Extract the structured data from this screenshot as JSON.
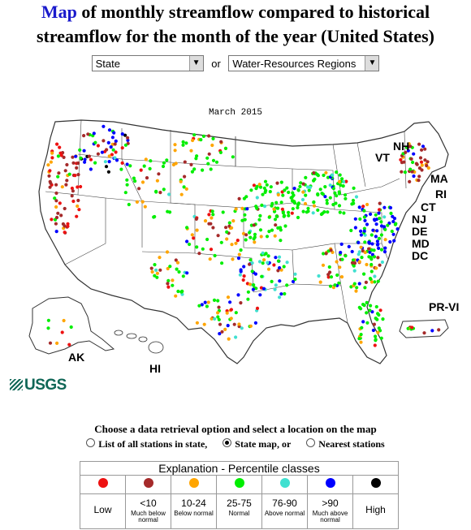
{
  "page": {
    "title_link": "Map",
    "title_rest_line1": " of monthly streamflow compared to historical",
    "title_line2": "streamflow for the month of the year (United States)"
  },
  "selectors": {
    "state_value": "State",
    "or_text": "or",
    "region_value": "Water-Resources Regions"
  },
  "map": {
    "caption": "March 2015",
    "state_labels": [
      "NH",
      "VT",
      "MA",
      "RI",
      "CT",
      "NJ",
      "DE",
      "MD",
      "DC",
      "PR-VI",
      "AK",
      "HI"
    ]
  },
  "logo": {
    "text": "USGS"
  },
  "retrieval": {
    "heading": "Choose a data retrieval option and select a location on the map",
    "options": [
      "List of all stations in state,",
      "State map, or",
      "Nearest stations"
    ],
    "selected_index": 1
  },
  "legend": {
    "title": "Explanation - Percentile classes",
    "classes": [
      {
        "color": "#ee1111",
        "label": "Low",
        "sub": ""
      },
      {
        "color": "#a52a2a",
        "label": "<10",
        "sub": "Much below normal"
      },
      {
        "color": "#ffa500",
        "label": "10-24",
        "sub": "Below normal"
      },
      {
        "color": "#00ee00",
        "label": "25-75",
        "sub": "Normal"
      },
      {
        "color": "#40e0d0",
        "label": "76-90",
        "sub": "Above normal"
      },
      {
        "color": "#0000ff",
        "label": ">90",
        "sub": "Much above normal"
      },
      {
        "color": "#000000",
        "label": "High",
        "sub": ""
      }
    ]
  },
  "colors": {
    "map_outline": "#333333",
    "map_fill": "#ffffff",
    "title_link": "#1a1acc",
    "usgs_green": "#0f6656"
  }
}
